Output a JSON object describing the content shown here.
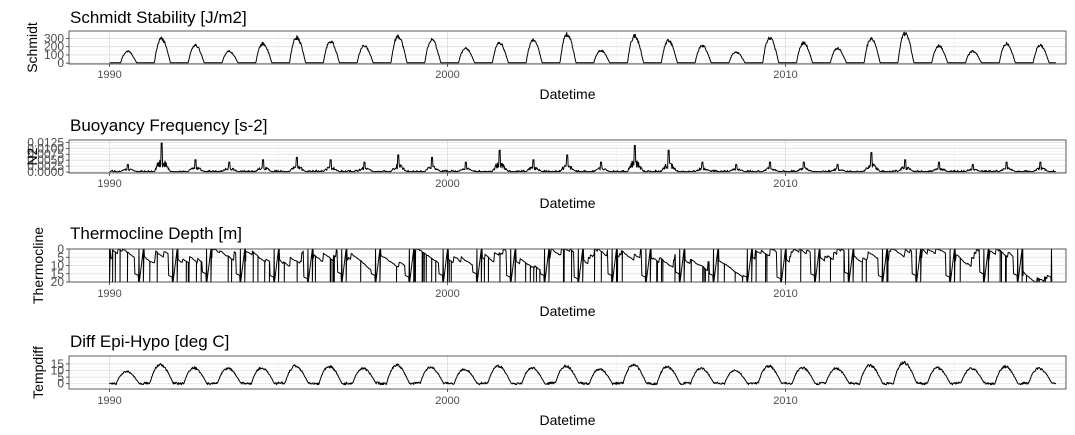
{
  "chart_data": [
    {
      "type": "line",
      "title": "Schmidt Stability [J/m2]",
      "xlabel": "Datetime",
      "ylabel": "Schmidt",
      "xlim": [
        1988.8,
        2018.3
      ],
      "ylim": [
        -10,
        390
      ],
      "y_ticks": [
        0,
        100,
        200,
        300
      ],
      "y_tick_labels": [
        "0",
        "100",
        "200",
        "300"
      ],
      "x_ticks": [
        1990,
        2000,
        2010
      ],
      "x_tick_labels": [
        "1990",
        "2000",
        "2010"
      ],
      "series_x": [
        1989.9,
        2018.1
      ],
      "peak_years": [
        1990,
        1991,
        1992,
        1993,
        1994,
        1995,
        1996,
        1997,
        1998,
        1999,
        2000,
        2001,
        2002,
        2003,
        2004,
        2005,
        2006,
        2007,
        2008,
        2009,
        2010,
        2011,
        2012,
        2013,
        2014,
        2015,
        2016,
        2017
      ],
      "peaks": [
        150,
        320,
        230,
        150,
        250,
        330,
        280,
        220,
        350,
        300,
        190,
        260,
        300,
        370,
        160,
        350,
        290,
        220,
        140,
        330,
        260,
        190,
        320,
        380,
        220,
        150,
        250,
        230
      ],
      "winter_values": [
        5,
        5,
        5,
        5,
        5,
        5,
        5,
        5,
        5,
        5,
        5,
        5,
        5,
        5,
        5,
        5,
        5,
        5,
        5,
        5,
        5,
        5,
        5,
        5,
        5,
        5,
        5,
        5
      ]
    },
    {
      "type": "line",
      "title": "Buoyancy Frequency [s-2]",
      "xlabel": "Datetime",
      "ylabel": "N2",
      "xlim": [
        1988.8,
        2018.3
      ],
      "ylim": [
        -0.0004,
        0.0135
      ],
      "y_ticks": [
        0,
        0.0025,
        0.005,
        0.0075,
        0.01,
        0.0125
      ],
      "y_tick_labels": [
        "0.0000",
        "0.0025",
        "0.0050",
        "0.0075",
        "0.0100",
        "0.0125"
      ],
      "x_ticks": [
        1990,
        2000,
        2010
      ],
      "x_tick_labels": [
        "1990",
        "2000",
        "2010"
      ],
      "series_x": [
        1989.9,
        2018.1
      ],
      "peak_years": [
        1990,
        1991,
        1992,
        1993,
        1994,
        1995,
        1996,
        1997,
        1998,
        1999,
        2000,
        2001,
        2002,
        2003,
        2004,
        2005,
        2006,
        2007,
        2008,
        2009,
        2010,
        2011,
        2012,
        2013,
        2014,
        2015,
        2016,
        2017
      ],
      "peaks": [
        0.003,
        0.012,
        0.005,
        0.004,
        0.005,
        0.006,
        0.005,
        0.004,
        0.007,
        0.006,
        0.004,
        0.009,
        0.005,
        0.007,
        0.004,
        0.011,
        0.009,
        0.004,
        0.003,
        0.004,
        0.004,
        0.003,
        0.008,
        0.005,
        0.004,
        0.003,
        0.004,
        0.004
      ],
      "winter_values": [
        0.0002,
        0.0002,
        0.0002,
        0.0002,
        0.0002,
        0.0002,
        0.0002,
        0.0002,
        0.0002,
        0.0002,
        0.0002,
        0.0002,
        0.0002,
        0.0002,
        0.0002,
        0.0002,
        0.0002,
        0.0002,
        0.0002,
        0.0002,
        0.0002,
        0.0002,
        0.0002,
        0.0002,
        0.0002,
        0.0002,
        0.0002,
        0.0002
      ]
    },
    {
      "type": "line",
      "title": "Thermocline Depth [m]",
      "xlabel": "Datetime",
      "ylabel": "Thermocline",
      "xlim": [
        1988.8,
        2018.3
      ],
      "ylim": [
        0,
        20
      ],
      "y_reversed": true,
      "y_ticks": [
        0,
        5,
        10,
        15,
        20
      ],
      "y_tick_labels": [
        "0",
        "5",
        "10",
        "15",
        "20"
      ],
      "x_ticks": [
        1990,
        2000,
        2010
      ],
      "x_tick_labels": [
        "1990",
        "2000",
        "2010"
      ],
      "series_x": [
        1989.9,
        2018.1
      ],
      "peak_years": [
        1990,
        1991,
        1992,
        1993,
        1994,
        1995,
        1996,
        1997,
        1998,
        1999,
        2000,
        2001,
        2002,
        2003,
        2004,
        2005,
        2006,
        2007,
        2008,
        2009,
        2010,
        2011,
        2012,
        2013,
        2014,
        2015,
        2016,
        2017
      ],
      "summer_depths": [
        5,
        4,
        6,
        5,
        7,
        6,
        5,
        6,
        4,
        5,
        6,
        5,
        7,
        5,
        6,
        4,
        5,
        6,
        7,
        5,
        6,
        5,
        4,
        6,
        5,
        7,
        6,
        16
      ],
      "autumn_depths": [
        15,
        16,
        14,
        15,
        16,
        17,
        14,
        15,
        16,
        15,
        14,
        16,
        15,
        17,
        15,
        16,
        14,
        15,
        16,
        17,
        15,
        14,
        16,
        15,
        16,
        14,
        15,
        16
      ]
    },
    {
      "type": "line",
      "title": "Diff Epi-Hypo [deg C]",
      "xlabel": "Datetime",
      "ylabel": "Tempdiff",
      "xlim": [
        1988.8,
        2018.3
      ],
      "ylim": [
        -4,
        21
      ],
      "y_ticks": [
        0,
        5,
        10,
        15
      ],
      "y_tick_labels": [
        "0",
        "5",
        "10",
        "15"
      ],
      "x_ticks": [
        1990,
        2000,
        2010
      ],
      "x_tick_labels": [
        "1990",
        "2000",
        "2010"
      ],
      "series_x": [
        1989.9,
        2018.1
      ],
      "peak_years": [
        1990,
        1991,
        1992,
        1993,
        1994,
        1995,
        1996,
        1997,
        1998,
        1999,
        2000,
        2001,
        2002,
        2003,
        2004,
        2005,
        2006,
        2007,
        2008,
        2009,
        2010,
        2011,
        2012,
        2013,
        2014,
        2015,
        2016,
        2017
      ],
      "peaks": [
        10,
        15,
        13,
        12,
        13,
        14,
        14,
        12,
        15,
        13,
        12,
        14,
        13,
        14,
        12,
        15,
        14,
        12,
        11,
        14,
        13,
        12,
        15,
        17,
        13,
        12,
        14,
        12
      ],
      "winter_values": [
        0,
        0.5,
        0,
        0.5,
        0,
        0.5,
        0,
        0.5,
        0,
        0.5,
        0,
        0.5,
        0,
        0.5,
        0,
        0.5,
        0,
        0.5,
        0,
        0.5,
        0,
        0.5,
        0,
        0.5,
        0,
        0.5,
        0,
        0.5
      ]
    }
  ]
}
